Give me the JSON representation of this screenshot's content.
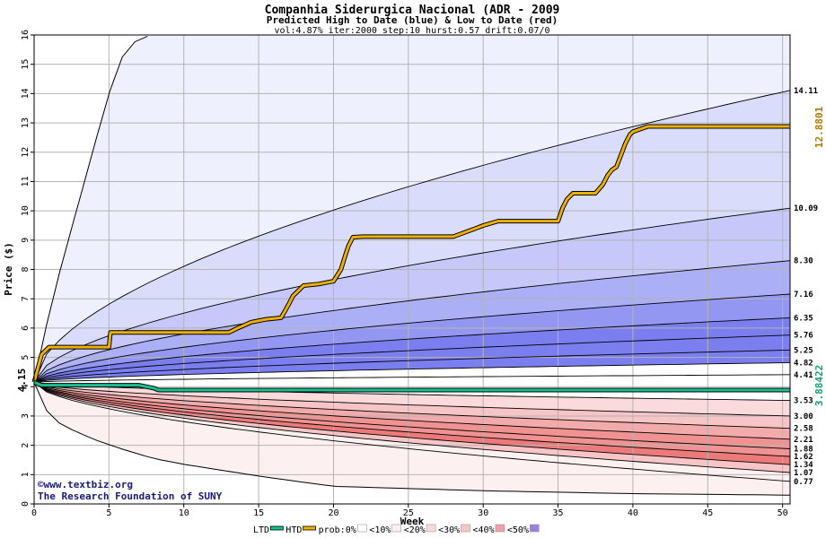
{
  "chart_data": {
    "type": "area",
    "title": "Companhia Siderurgica Nacional (ADR - 2009",
    "subtitle": "Predicted High to Date (blue) &  Low to Date (red)",
    "params": "vol:4.87% iter:2000 step:10 hurst:0.57 drift:0.07/0",
    "xlabel": "Week",
    "ylabel": "Price ($)",
    "xlim": [
      0,
      50.5
    ],
    "ylim": [
      0,
      16
    ],
    "x_ticks": [
      0,
      5,
      10,
      15,
      20,
      25,
      30,
      35,
      40,
      45,
      50
    ],
    "y_ticks": [
      0,
      1,
      2,
      3,
      4,
      5,
      6,
      7,
      8,
      9,
      10,
      11,
      12,
      13,
      14,
      15,
      16
    ],
    "grid": true,
    "start_price": 4.15,
    "start_price_label": "4.15",
    "htd_last_label": "12.8801",
    "ltd_last_label": "3.88422",
    "htd_line": {
      "name": "HTD",
      "color": "#f0b000",
      "x": [
        0,
        0.5,
        1,
        5,
        5.1,
        8,
        13,
        13.6,
        14.5,
        15.5,
        16.5,
        17,
        17.3,
        17.7,
        18,
        19,
        20,
        20.5,
        20.8,
        21,
        21.3,
        22,
        25,
        28,
        29.5,
        30,
        31,
        35,
        35.3,
        35.6,
        36,
        37.5,
        38,
        38.3,
        38.6,
        38.9,
        39.5,
        39.8,
        40,
        41,
        50.5
      ],
      "y": [
        4.15,
        5.1,
        5.35,
        5.35,
        5.85,
        5.85,
        5.85,
        6.0,
        6.2,
        6.3,
        6.35,
        6.8,
        7.1,
        7.3,
        7.45,
        7.5,
        7.6,
        8.0,
        8.5,
        8.8,
        9.1,
        9.12,
        9.12,
        9.12,
        9.4,
        9.5,
        9.65,
        9.65,
        10.1,
        10.4,
        10.6,
        10.6,
        10.9,
        11.2,
        11.4,
        11.5,
        12.3,
        12.6,
        12.7,
        12.88,
        12.88
      ]
    },
    "ltd_line": {
      "name": "LTD",
      "color": "#19c090",
      "x": [
        0,
        0.5,
        7,
        8,
        8.3,
        50.5
      ],
      "y": [
        4.15,
        4.05,
        4.05,
        3.95,
        3.884,
        3.884
      ]
    },
    "high_quantiles": {
      "end_labels": [
        "14.11",
        "10.09",
        "8.30",
        "7.16",
        "6.35",
        "5.76",
        "5.25",
        "4.82",
        "4.41"
      ],
      "end_values": [
        14.11,
        10.09,
        8.3,
        7.16,
        6.35,
        5.76,
        5.25,
        4.82,
        4.41
      ]
    },
    "low_quantiles": {
      "end_labels": [
        "3.53",
        "3.00",
        "2.58",
        "2.21",
        "1.88",
        "1.62",
        "1.34",
        "1.07",
        "0.77"
      ],
      "end_values": [
        3.53,
        3.0,
        2.58,
        2.21,
        1.88,
        1.62,
        1.34,
        1.07,
        0.77
      ]
    },
    "outer_envelope": {
      "upper_x": [
        0,
        1,
        2,
        3,
        4,
        5,
        6,
        7,
        8
      ],
      "upper_y": [
        4.15,
        6.5,
        8.5,
        10.3,
        12.2,
        14.0,
        15.4,
        15.9,
        16
      ],
      "lower_x": [
        0,
        1,
        2,
        4,
        6,
        8,
        10,
        15,
        20,
        30,
        40,
        50.5
      ],
      "lower_y": [
        4.15,
        3.0,
        2.65,
        2.2,
        1.85,
        1.55,
        1.35,
        0.95,
        0.6,
        0.45,
        0.35,
        0.3
      ]
    },
    "bands": {
      "blue": [
        "#eef0fd",
        "#dadcfb",
        "#c5c8f8",
        "#abaff5",
        "#9397f2",
        "#7a7eee"
      ],
      "red": [
        "#fdf0f0",
        "#fadada",
        "#f7c5c5",
        "#f3aaaa",
        "#f09292",
        "#ec7a7a"
      ]
    },
    "legend": [
      {
        "label": "LTD",
        "color": "#19c090",
        "kind": "line"
      },
      {
        "label": "HTD",
        "color": "#f0b000",
        "kind": "line"
      },
      {
        "label": "prob:0%",
        "color": "#ffffff",
        "kind": "box"
      },
      {
        "label": "<10%",
        "color": "#fdf0f0",
        "kind": "box"
      },
      {
        "label": "<20%",
        "color": "#fadada",
        "kind": "box"
      },
      {
        "label": "<30%",
        "color": "#f7c5c5",
        "kind": "box"
      },
      {
        "label": "<40%",
        "color": "#f0a0a8",
        "kind": "box"
      },
      {
        "label": "<50%",
        "color": "#9a80e8",
        "kind": "box"
      }
    ],
    "credit_lines": [
      "©www.textbiz.org",
      "The Research Foundation of SUNY"
    ]
  }
}
